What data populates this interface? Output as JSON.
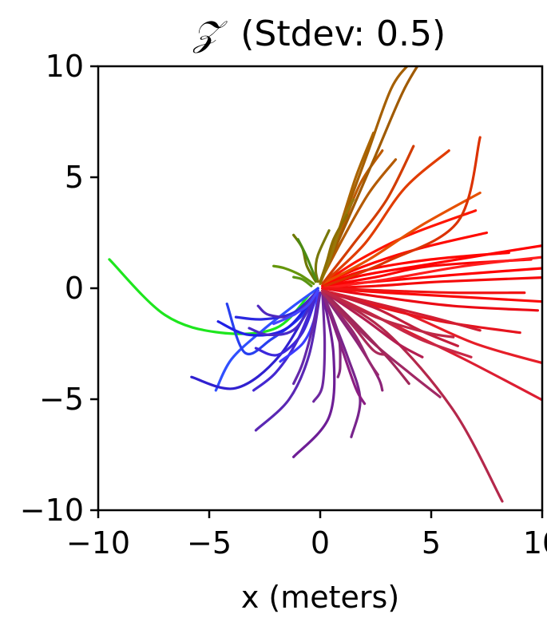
{
  "chart_data": {
    "type": "line",
    "title": "𝒵 (Stdev: 0.5)",
    "title_symbol": "𝒵",
    "title_text": "(Stdev: 0.5)",
    "xlabel": "x (meters)",
    "ylabel": "",
    "xlim": [
      -10,
      10
    ],
    "ylim": [
      -10,
      10
    ],
    "xticks": [
      -10,
      -5,
      0,
      5,
      10
    ],
    "yticks": [
      -10,
      -5,
      0,
      5,
      10
    ],
    "xtick_labels": [
      "−10",
      "−5",
      "0",
      "5",
      "10"
    ],
    "ytick_labels": [
      "−10",
      "−5",
      "0",
      "5",
      "10"
    ],
    "grid": false,
    "legend": "none",
    "color_encoding": "hue by final heading angle",
    "series": [
      {
        "color": "#ff0000",
        "x": [
          0.1,
          2.0,
          5.0,
          8.0,
          10.5
        ],
        "y": [
          0.1,
          0.6,
          1.1,
          1.6,
          2.0
        ]
      },
      {
        "color": "#ff0000",
        "x": [
          0.1,
          2.5,
          6.0,
          10.0
        ],
        "y": [
          0.1,
          0.3,
          0.6,
          0.9
        ]
      },
      {
        "color": "#fa0a0a",
        "x": [
          0.1,
          3.0,
          6.5,
          10.0
        ],
        "y": [
          0.0,
          -0.2,
          -0.4,
          -0.6
        ]
      },
      {
        "color": "#fa0505",
        "x": [
          0.1,
          2.5,
          5.0,
          9.5
        ],
        "y": [
          0.1,
          0.5,
          1.0,
          1.3
        ]
      },
      {
        "color": "#ff0a00",
        "x": [
          0.1,
          2.0,
          4.5,
          7.5
        ],
        "y": [
          0.2,
          1.0,
          1.8,
          2.5
        ]
      },
      {
        "color": "#ff1400",
        "x": [
          0.1,
          1.8,
          4.0,
          7.0
        ],
        "y": [
          0.2,
          1.3,
          2.4,
          3.5
        ]
      },
      {
        "color": "#f50a0a",
        "x": [
          0.1,
          2.5,
          5.5,
          10.5
        ],
        "y": [
          0.0,
          0.1,
          0.3,
          0.5
        ]
      },
      {
        "color": "#e61e28",
        "x": [
          0.1,
          3.5,
          7.0,
          10.5
        ],
        "y": [
          -0.1,
          -1.0,
          -2.5,
          -3.5
        ]
      },
      {
        "color": "#e6141e",
        "x": [
          0.1,
          2.5,
          5.5,
          9.0
        ],
        "y": [
          -0.1,
          -0.8,
          -1.5,
          -2.0
        ]
      },
      {
        "color": "#dc1e32",
        "x": [
          0.1,
          3.0,
          6.5,
          10.5
        ],
        "y": [
          -0.1,
          -1.5,
          -3.2,
          -5.3
        ]
      },
      {
        "color": "#eb0a14",
        "x": [
          0.1,
          2.8,
          6.0,
          9.8
        ],
        "y": [
          0.0,
          -0.4,
          -0.8,
          -1.0
        ]
      },
      {
        "color": "#ff0500",
        "x": [
          0.1,
          2.0,
          5.0,
          8.5
        ],
        "y": [
          0.1,
          0.8,
          1.3,
          1.6
        ]
      },
      {
        "color": "#e13c00",
        "x": [
          0.1,
          2.0,
          3.8,
          5.8
        ],
        "y": [
          0.2,
          2.0,
          4.5,
          6.2
        ]
      },
      {
        "color": "#e65000",
        "x": [
          0.1,
          2.2,
          4.5,
          7.2
        ],
        "y": [
          0.2,
          1.3,
          2.8,
          4.3
        ]
      },
      {
        "color": "#d23c00",
        "x": [
          0.1,
          1.5,
          3.0,
          4.2
        ],
        "y": [
          0.2,
          2.0,
          4.0,
          6.4
        ]
      },
      {
        "color": "#dc3200",
        "x": [
          0.2,
          3.0,
          6.2,
          7.2
        ],
        "y": [
          0.1,
          1.2,
          3.0,
          6.8
        ]
      },
      {
        "color": "#b45a00",
        "x": [
          0.0,
          1.0,
          2.2,
          3.4
        ],
        "y": [
          0.3,
          2.2,
          4.3,
          5.8
        ]
      },
      {
        "color": "#be5a00",
        "x": [
          0.0,
          0.9,
          1.8,
          2.8
        ],
        "y": [
          0.3,
          2.5,
          4.7,
          6.2
        ]
      },
      {
        "color": "#a05a00",
        "x": [
          0.0,
          1.2,
          2.5,
          3.7,
          4.5
        ],
        "y": [
          0.3,
          3.0,
          6.0,
          8.8,
          10.2
        ]
      },
      {
        "color": "#a55f00",
        "x": [
          0.0,
          1.0,
          2.1,
          3.2,
          4.1
        ],
        "y": [
          0.3,
          3.0,
          6.0,
          9.0,
          10.2
        ]
      },
      {
        "color": "#aa6400",
        "x": [
          0.0,
          0.8,
          1.6,
          2.4
        ],
        "y": [
          0.3,
          2.5,
          5.0,
          7.0
        ]
      },
      {
        "color": "#96780a",
        "x": [
          0.0,
          0.5,
          1.0,
          1.5
        ],
        "y": [
          0.2,
          1.5,
          3.0,
          4.0
        ]
      },
      {
        "color": "#8c6e00",
        "x": [
          0.0,
          0.3,
          0.6,
          1.2
        ],
        "y": [
          0.3,
          1.2,
          2.2,
          3.3
        ]
      },
      {
        "color": "#6e7800",
        "x": [
          -0.2,
          -0.6,
          -0.8,
          -1.2
        ],
        "y": [
          0.3,
          1.0,
          1.8,
          2.4
        ]
      },
      {
        "color": "#78780a",
        "x": [
          -0.1,
          -0.2,
          -0.1,
          0.4
        ],
        "y": [
          0.3,
          0.8,
          1.5,
          2.6
        ]
      },
      {
        "color": "#64960a",
        "x": [
          -0.3,
          -0.9,
          -1.6,
          -2.1
        ],
        "y": [
          0.2,
          0.6,
          0.9,
          1.0
        ]
      },
      {
        "color": "#5a9614",
        "x": [
          -0.4,
          -0.8,
          -1.2
        ],
        "y": [
          0.1,
          0.4,
          0.5
        ]
      },
      {
        "color": "#4b8c14",
        "x": [
          -0.2,
          -0.6,
          -1.0
        ],
        "y": [
          0.4,
          1.4,
          2.2
        ]
      },
      {
        "color": "#1ee61e",
        "x": [
          -0.5,
          -2.0,
          -4.5,
          -7.0,
          -9.5
        ],
        "y": [
          -0.3,
          -1.8,
          -2.0,
          -1.2,
          1.3
        ]
      },
      {
        "color": "#3050ff",
        "x": [
          -0.1,
          -1.2,
          -2.6,
          -4.0,
          -4.7
        ],
        "y": [
          0.0,
          -0.8,
          -1.9,
          -3.2,
          -4.6
        ]
      },
      {
        "color": "#2840f0",
        "x": [
          -0.1,
          -0.8,
          -2.2,
          -3.4,
          -4.2
        ],
        "y": [
          0.0,
          -1.2,
          -2.3,
          -2.9,
          -0.7
        ]
      },
      {
        "color": "#2020e6",
        "x": [
          -0.1,
          -1.5,
          -3.2,
          -4.6
        ],
        "y": [
          -0.1,
          -1.8,
          -2.1,
          -1.5
        ]
      },
      {
        "color": "#2a28e0",
        "x": [
          -0.1,
          -1.2,
          -2.6,
          -3.8
        ],
        "y": [
          -0.1,
          -1.1,
          -1.4,
          -1.3
        ]
      },
      {
        "color": "#3020d0",
        "x": [
          -0.1,
          -1.8,
          -3.8,
          -5.8
        ],
        "y": [
          -0.1,
          -3.0,
          -4.5,
          -4.0
        ]
      },
      {
        "color": "#3c28dc",
        "x": [
          -0.1,
          -0.8,
          -1.9,
          -2.9
        ],
        "y": [
          -0.1,
          -2.0,
          -3.0,
          -2.7
        ]
      },
      {
        "color": "#4428d2",
        "x": [
          -0.1,
          -1.0,
          -2.0,
          -3.0
        ],
        "y": [
          -0.1,
          -2.3,
          -3.8,
          -4.6
        ]
      },
      {
        "color": "#4a2ac8",
        "x": [
          -0.1,
          -1.1,
          -2.3,
          -3.2
        ],
        "y": [
          -0.1,
          -1.8,
          -2.1,
          -1.8
        ]
      },
      {
        "color": "#5028be",
        "x": [
          -0.1,
          -1.2,
          -2.3,
          -2.8
        ],
        "y": [
          -0.1,
          -1.2,
          -1.2,
          -0.8
        ]
      },
      {
        "color": "#3c3cff",
        "x": [
          -0.1,
          -0.3,
          -0.8,
          -1.8
        ],
        "y": [
          -0.2,
          -1.5,
          -2.5,
          -3.3
        ]
      },
      {
        "color": "#4646ff",
        "x": [
          -0.1,
          -0.6,
          -1.4,
          -2.1
        ],
        "y": [
          -0.1,
          -0.8,
          -1.3,
          -1.6
        ]
      },
      {
        "color": "#5a28b4",
        "x": [
          0.0,
          -0.5,
          -1.4,
          -2.9
        ],
        "y": [
          -0.2,
          -3.0,
          -5.0,
          -6.4
        ]
      },
      {
        "color": "#6428aa",
        "x": [
          0.0,
          -0.4,
          -0.8,
          -1.2
        ],
        "y": [
          -0.2,
          -2.0,
          -3.4,
          -4.3
        ]
      },
      {
        "color": "#6e28a0",
        "x": [
          0.1,
          0.2,
          0.1,
          -0.3
        ],
        "y": [
          -0.2,
          -2.5,
          -4.4,
          -5.1
        ]
      },
      {
        "color": "#6e1e96",
        "x": [
          0.1,
          0.6,
          0.4,
          -1.2
        ],
        "y": [
          -0.2,
          -3.0,
          -5.8,
          -7.6
        ]
      },
      {
        "color": "#78248c",
        "x": [
          0.1,
          1.2,
          1.8,
          1.4
        ],
        "y": [
          -0.2,
          -3.0,
          -5.0,
          -6.7
        ]
      },
      {
        "color": "#8c2478",
        "x": [
          0.1,
          1.7,
          2.6,
          2.8
        ],
        "y": [
          -0.2,
          -2.5,
          -4.0,
          -4.6
        ]
      },
      {
        "color": "#962870",
        "x": [
          0.1,
          1.5,
          2.2,
          2.6
        ],
        "y": [
          -0.2,
          -2.0,
          -3.3,
          -3.9
        ]
      },
      {
        "color": "#a02864",
        "x": [
          0.1,
          2.2,
          4.0,
          5.4
        ],
        "y": [
          -0.2,
          -2.3,
          -3.8,
          -4.9
        ]
      },
      {
        "color": "#b4284b",
        "x": [
          0.1,
          3.0,
          6.0,
          8.2
        ],
        "y": [
          -0.1,
          -2.0,
          -5.5,
          -9.6
        ]
      },
      {
        "color": "#a0285a",
        "x": [
          0.1,
          1.8,
          3.1,
          4.0
        ],
        "y": [
          -0.1,
          -1.8,
          -3.2,
          -4.3
        ]
      },
      {
        "color": "#b41e50",
        "x": [
          0.1,
          2.0,
          3.5,
          4.6
        ],
        "y": [
          -0.1,
          -1.4,
          -2.5,
          -3.1
        ]
      },
      {
        "color": "#8c1e82",
        "x": [
          0.1,
          0.9,
          1.6,
          2.0
        ],
        "y": [
          -0.2,
          -2.5,
          -4.5,
          -5.2
        ]
      },
      {
        "color": "#822882",
        "x": [
          0.1,
          0.8,
          0.9,
          0.8
        ],
        "y": [
          -0.2,
          -2.0,
          -3.5,
          -4.0
        ]
      },
      {
        "color": "#aa2a5a",
        "x": [
          0.1,
          1.4,
          2.4,
          3.0
        ],
        "y": [
          -0.2,
          -1.6,
          -2.8,
          -3.0
        ]
      },
      {
        "color": "#c31e3c",
        "x": [
          0.1,
          2.5,
          4.5,
          6.2
        ],
        "y": [
          -0.1,
          -0.9,
          -1.9,
          -2.6
        ]
      },
      {
        "color": "#d21e32",
        "x": [
          0.1,
          2.6,
          5.0,
          7.2
        ],
        "y": [
          -0.1,
          -0.7,
          -1.3,
          -1.9
        ]
      },
      {
        "color": "#c82846",
        "x": [
          0.1,
          2.4,
          4.5,
          6.8
        ],
        "y": [
          -0.1,
          -1.2,
          -2.3,
          -3.1
        ]
      },
      {
        "color": "#be2846",
        "x": [
          0.1,
          2.5,
          4.8,
          6.0
        ],
        "y": [
          -0.1,
          -1.3,
          -2.0,
          -2.2
        ]
      },
      {
        "color": "#ff1e1e",
        "x": [
          0.1,
          3.0,
          6.5,
          10.0
        ],
        "y": [
          0.0,
          0.4,
          1.0,
          1.4
        ]
      },
      {
        "color": "#f01414",
        "x": [
          0.1,
          2.8,
          6.0,
          9.2
        ],
        "y": [
          0.0,
          -0.1,
          -0.2,
          -0.2
        ]
      }
    ]
  }
}
